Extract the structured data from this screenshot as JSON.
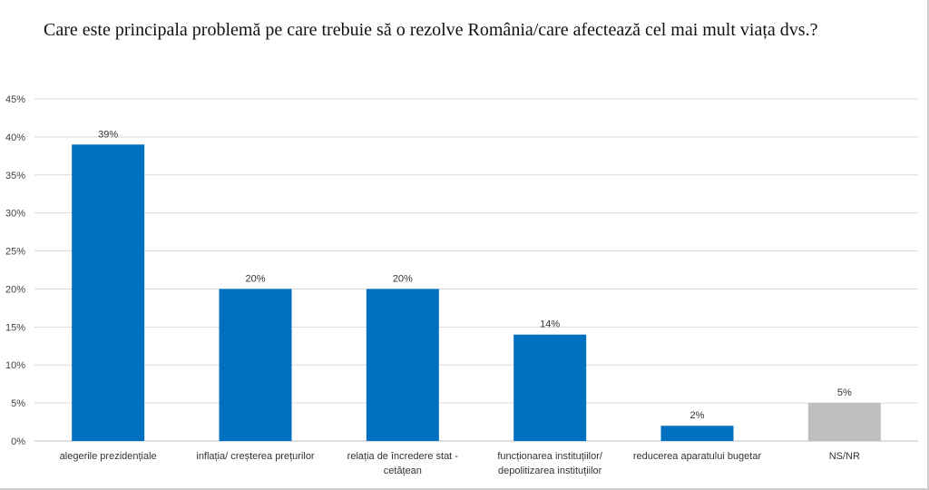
{
  "title": "Care este principala problemă pe care trebuie să o rezolve România/care afectează cel mai mult viața dvs.?",
  "chart_data": {
    "type": "bar",
    "title": "Care este principala problemă pe care trebuie să o rezolve România/care afectează cel mai mult viața dvs.?",
    "categories": [
      [
        "alegerile  prezidențiale"
      ],
      [
        "inflația/ creșterea prețurilor"
      ],
      [
        "relația de încredere stat -",
        "cetățean"
      ],
      [
        "funcționarea instituțiilor/",
        "depolitizarea instituțiilor"
      ],
      [
        "reducerea aparatului bugetar"
      ],
      [
        "NS/NR"
      ]
    ],
    "values": [
      39,
      20,
      20,
      14,
      2,
      5
    ],
    "data_labels": [
      "39%",
      "20%",
      "20%",
      "14%",
      "2%",
      "5%"
    ],
    "colors": [
      "#0070C0",
      "#0070C0",
      "#0070C0",
      "#0070C0",
      "#0070C0",
      "#BFBFBF"
    ],
    "ylim": [
      0,
      45
    ],
    "yticks": [
      "0%",
      "5%",
      "10%",
      "15%",
      "20%",
      "25%",
      "30%",
      "35%",
      "40%",
      "45%"
    ],
    "xlabel": "",
    "ylabel": "",
    "grid": true,
    "legend": "none"
  }
}
